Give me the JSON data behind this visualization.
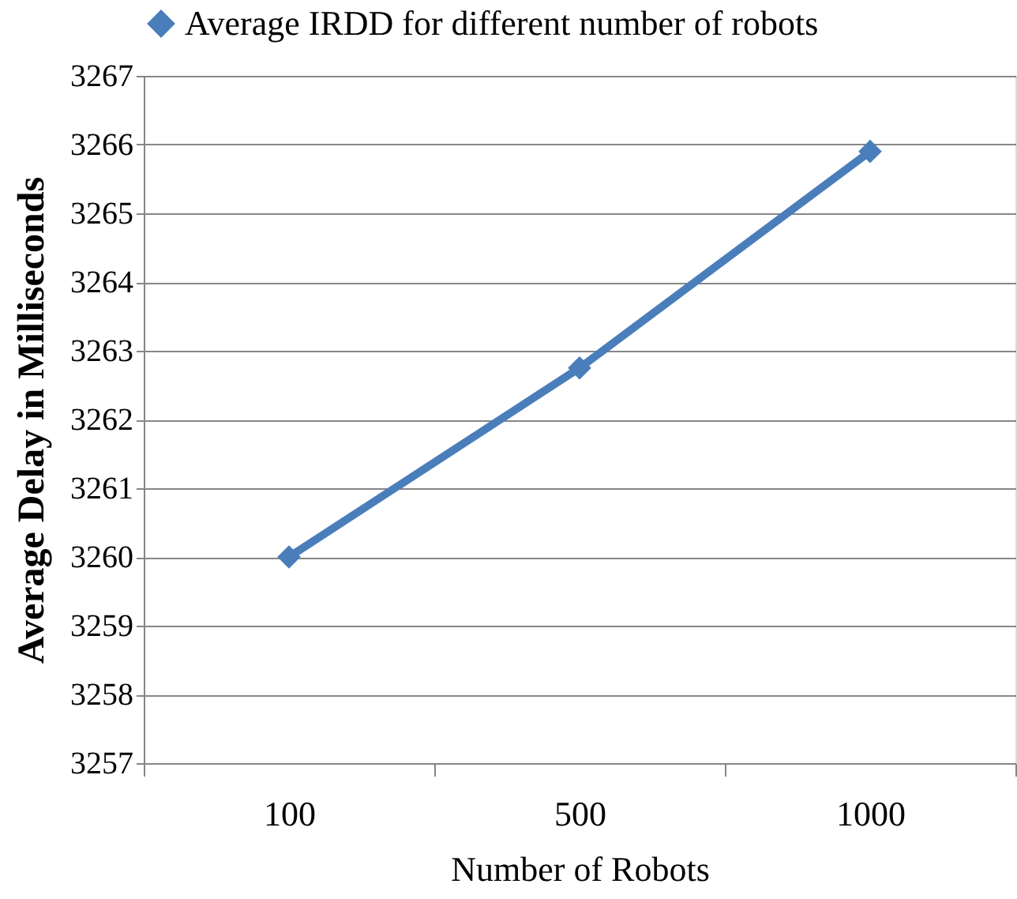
{
  "chart_data": {
    "type": "line",
    "xlabel": "Number of Robots",
    "ylabel": "Average Delay in Milliseconds",
    "categories": [
      "100",
      "500",
      "1000"
    ],
    "series": [
      {
        "name": "Average IRDD for different number of robots",
        "color": "#4a7ebb",
        "values": [
          3260,
          3262.75,
          3265.9
        ]
      }
    ],
    "ylim": [
      3257,
      3267
    ],
    "yticks": [
      3257,
      3258,
      3259,
      3260,
      3261,
      3262,
      3263,
      3264,
      3265,
      3266,
      3267
    ],
    "grid": "y",
    "legend": "top",
    "marker": "diamond",
    "line_style": "solid"
  }
}
